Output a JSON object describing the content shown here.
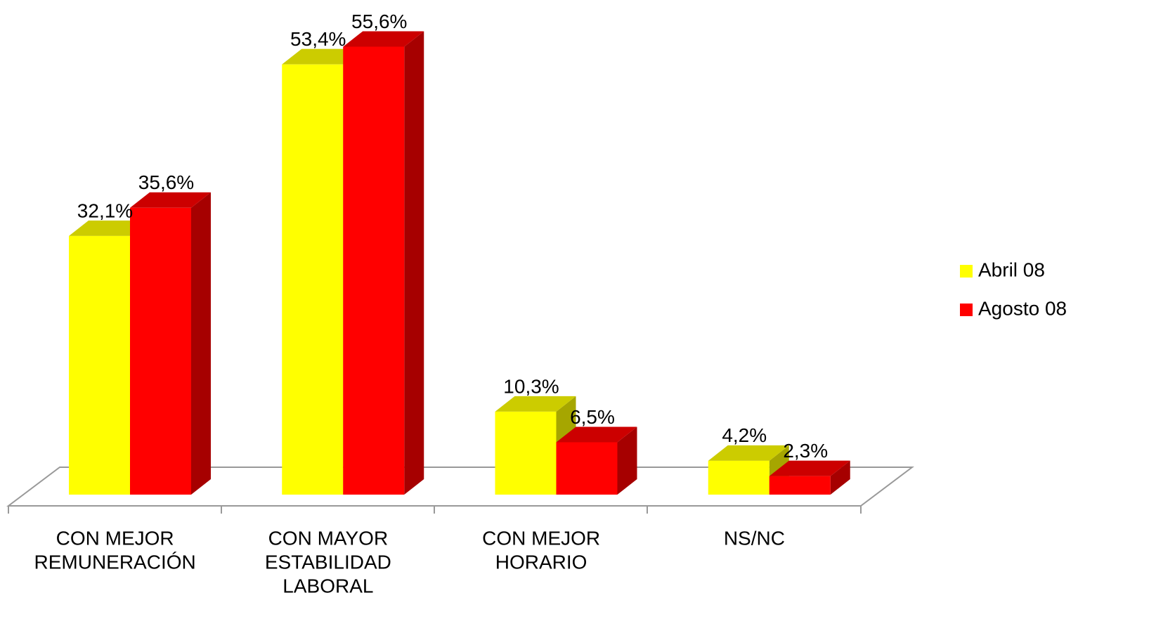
{
  "chart_data": {
    "type": "bar3d",
    "categories": [
      [
        "CON MEJOR",
        "REMUNERACIÓN"
      ],
      [
        "CON MAYOR",
        "ESTABILIDAD",
        "LABORAL"
      ],
      [
        "CON MEJOR",
        "HORARIO"
      ],
      [
        "NS/NC"
      ]
    ],
    "series": [
      {
        "name": "Abril 08",
        "color": "#ffff00",
        "values": [
          32.1,
          53.4,
          10.3,
          4.2
        ],
        "value_labels": [
          "32,1%",
          "53,4%",
          "10,3%",
          "4,2%"
        ]
      },
      {
        "name": "Agosto 08",
        "color": "#ff0000",
        "values": [
          35.6,
          55.6,
          6.5,
          2.3
        ],
        "value_labels": [
          "35,6%",
          "55,6%",
          "6,5%",
          "2,3%"
        ]
      }
    ],
    "ylim": [
      0,
      60
    ],
    "legend": "right"
  }
}
